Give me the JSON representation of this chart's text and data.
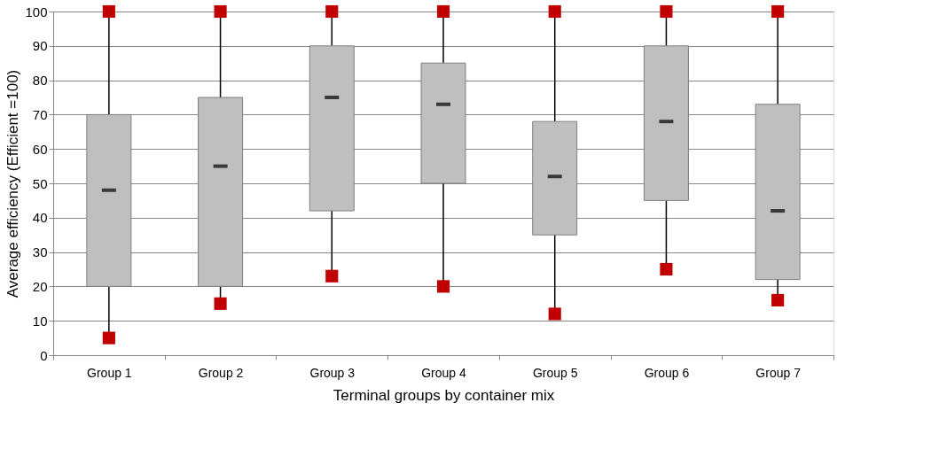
{
  "chart_data": {
    "type": "box",
    "xlabel": "Terminal groups by container mix",
    "ylabel": "Average efficiency (Efficient =100)",
    "categories": [
      "Group 1",
      "Group 2",
      "Group 3",
      "Group 4",
      "Group 5",
      "Group 6",
      "Group 7"
    ],
    "series": [
      {
        "color": "#bfbfbf",
        "boxes": [
          {
            "low": 5,
            "q1": 20,
            "median": 48,
            "q3": 70,
            "high": 100
          },
          {
            "low": 15,
            "q1": 20,
            "median": 55,
            "q3": 75,
            "high": 100
          },
          {
            "low": 23,
            "q1": 42,
            "median": 75,
            "q3": 90,
            "high": 100
          },
          {
            "low": 20,
            "q1": 50,
            "median": 73,
            "q3": 85,
            "high": 100
          },
          {
            "low": 12,
            "q1": 35,
            "median": 52,
            "q3": 68,
            "high": 100
          },
          {
            "low": 25,
            "q1": 45,
            "median": 68,
            "q3": 90,
            "high": 100
          },
          {
            "low": 16,
            "q1": 22,
            "median": 42,
            "q3": 73,
            "high": 100
          }
        ]
      },
      {
        "type": "scatter",
        "color": "#c00000",
        "x": [
          "Group 1",
          "Group 2",
          "Group 3",
          "Group 4",
          "Group 5",
          "Group 6",
          "Group 7"
        ],
        "values": [
          100,
          100,
          100,
          100,
          100,
          100,
          100
        ]
      },
      {
        "type": "scatter",
        "color": "#c00000",
        "x": [
          "Group 1",
          "Group 2",
          "Group 3",
          "Group 4",
          "Group 5",
          "Group 6",
          "Group 7"
        ],
        "values": [
          5,
          15,
          23,
          20,
          12,
          25,
          16
        ]
      }
    ],
    "ylim": [
      0,
      100
    ],
    "yticks": [
      0,
      10,
      20,
      30,
      40,
      50,
      60,
      70,
      80,
      90,
      100
    ],
    "grid": "y",
    "marker": "square"
  }
}
